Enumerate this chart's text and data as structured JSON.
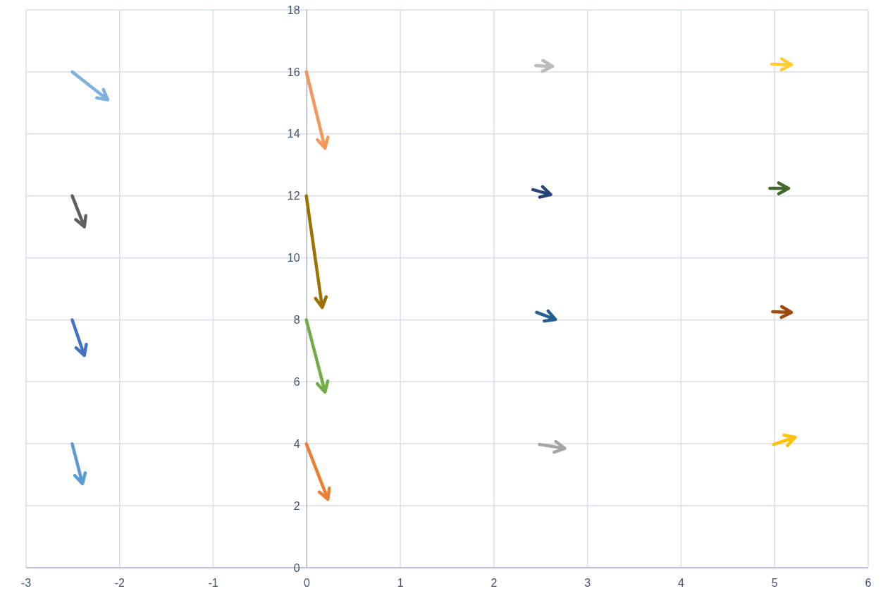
{
  "chart_data": {
    "type": "line",
    "xlim": [
      -3,
      6
    ],
    "xticks": [
      -3,
      -2,
      -1,
      0,
      1,
      2,
      3,
      4,
      5,
      6
    ],
    "ylim": [
      0,
      18
    ],
    "yticks": [
      0,
      2,
      4,
      6,
      8,
      10,
      12,
      14,
      16,
      18
    ],
    "grid": true,
    "line_style": "solid",
    "series": [
      {
        "color": "#7eb0e0",
        "x": [
          -2.5,
          -2.12
        ],
        "values": [
          16,
          15.1
        ]
      },
      {
        "color": "#5f5f5f",
        "x": [
          -2.5,
          -2.37
        ],
        "values": [
          12,
          11.0
        ]
      },
      {
        "color": "#4472c4",
        "x": [
          -2.5,
          -2.37
        ],
        "values": [
          8,
          6.85
        ]
      },
      {
        "color": "#5b9bd5",
        "x": [
          -2.5,
          -2.39
        ],
        "values": [
          4,
          2.71
        ]
      },
      {
        "color": "#f4975a",
        "x": [
          0,
          0.2
        ],
        "values": [
          16,
          13.54
        ]
      },
      {
        "color": "#9c7200",
        "x": [
          0,
          0.17
        ],
        "values": [
          12,
          8.4
        ]
      },
      {
        "color": "#70ad47",
        "x": [
          0,
          0.2
        ],
        "values": [
          8,
          5.67
        ]
      },
      {
        "color": "#ed7d31",
        "x": [
          0,
          0.23
        ],
        "values": [
          4,
          2.21
        ]
      },
      {
        "color": "#bcbcbc",
        "x": [
          2.45,
          2.63
        ],
        "values": [
          16.2,
          16.18
        ]
      },
      {
        "color": "#ffcc33",
        "x": [
          4.97,
          5.18
        ],
        "values": [
          16.25,
          16.23
        ]
      },
      {
        "color": "#264478",
        "x": [
          2.42,
          2.61
        ],
        "values": [
          12.2,
          12.04
        ]
      },
      {
        "color": "#43682b",
        "x": [
          4.95,
          5.15
        ],
        "values": [
          12.24,
          12.24
        ]
      },
      {
        "color": "#255e91",
        "x": [
          2.46,
          2.66
        ],
        "values": [
          8.24,
          8.01
        ]
      },
      {
        "color": "#9e480e",
        "x": [
          4.98,
          5.18
        ],
        "values": [
          8.26,
          8.24
        ]
      },
      {
        "color": "#a5a5a5",
        "x": [
          2.49,
          2.76
        ],
        "values": [
          3.98,
          3.85
        ]
      },
      {
        "color": "#ffc000",
        "x": [
          4.99,
          5.22
        ],
        "values": [
          3.98,
          4.21
        ]
      }
    ]
  }
}
